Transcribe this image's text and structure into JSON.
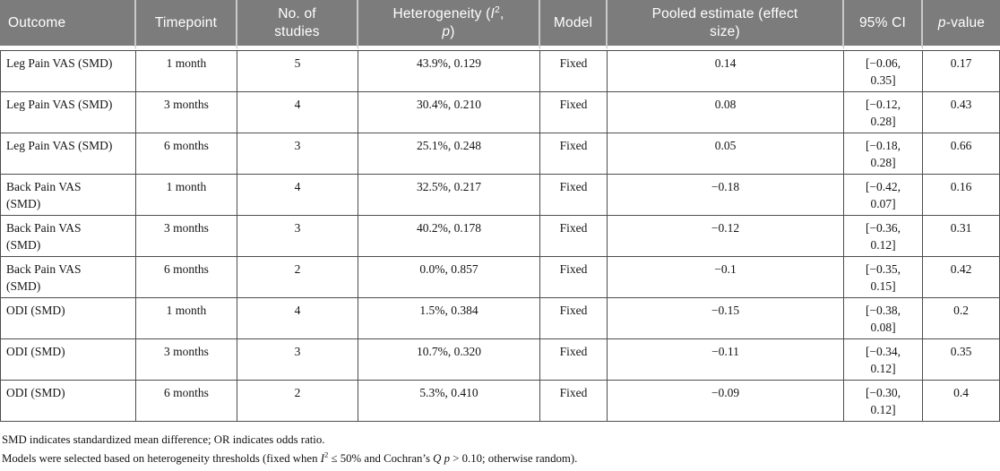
{
  "table": {
    "columns": [
      {
        "key": "outcome",
        "label": "Outcome"
      },
      {
        "key": "timepoint",
        "label": "Timepoint"
      },
      {
        "key": "n_studies",
        "label": "No. of\nstudies"
      },
      {
        "key": "heterogeneity",
        "label": "Heterogeneity (*I*^2^,\n*p*)"
      },
      {
        "key": "model",
        "label": "Model"
      },
      {
        "key": "pooled",
        "label": "Pooled estimate (effect\nsize)"
      },
      {
        "key": "ci",
        "label": "95% CI"
      },
      {
        "key": "p",
        "label": "*p*-value"
      }
    ],
    "rows": [
      {
        "outcome": "Leg Pain VAS (SMD)",
        "timepoint": "1 month",
        "n_studies": "5",
        "heterogeneity": "43.9%, 0.129",
        "model": "Fixed",
        "pooled": "0.14",
        "ci": "[−0.06,\n0.35]",
        "p": "0.17"
      },
      {
        "outcome": "Leg Pain VAS (SMD)",
        "timepoint": "3 months",
        "n_studies": "4",
        "heterogeneity": "30.4%, 0.210",
        "model": "Fixed",
        "pooled": "0.08",
        "ci": "[−0.12,\n0.28]",
        "p": "0.43"
      },
      {
        "outcome": "Leg Pain VAS (SMD)",
        "timepoint": "6 months",
        "n_studies": "3",
        "heterogeneity": "25.1%, 0.248",
        "model": "Fixed",
        "pooled": "0.05",
        "ci": "[−0.18,\n0.28]",
        "p": "0.66"
      },
      {
        "outcome": "Back Pain VAS\n(SMD)",
        "timepoint": "1 month",
        "n_studies": "4",
        "heterogeneity": "32.5%, 0.217",
        "model": "Fixed",
        "pooled": "−0.18",
        "ci": "[−0.42,\n0.07]",
        "p": "0.16"
      },
      {
        "outcome": "Back Pain VAS\n(SMD)",
        "timepoint": "3 months",
        "n_studies": "3",
        "heterogeneity": "40.2%, 0.178",
        "model": "Fixed",
        "pooled": "−0.12",
        "ci": "[−0.36,\n0.12]",
        "p": "0.31"
      },
      {
        "outcome": "Back Pain VAS\n(SMD)",
        "timepoint": "6 months",
        "n_studies": "2",
        "heterogeneity": "0.0%, 0.857",
        "model": "Fixed",
        "pooled": "−0.1",
        "ci": "[−0.35,\n0.15]",
        "p": "0.42"
      },
      {
        "outcome": "ODI (SMD)",
        "timepoint": "1 month",
        "n_studies": "4",
        "heterogeneity": "1.5%, 0.384",
        "model": "Fixed",
        "pooled": "−0.15",
        "ci": "[−0.38,\n0.08]",
        "p": "0.2"
      },
      {
        "outcome": "ODI (SMD)",
        "timepoint": "3 months",
        "n_studies": "3",
        "heterogeneity": "10.7%, 0.320",
        "model": "Fixed",
        "pooled": "−0.11",
        "ci": "[−0.34,\n0.12]",
        "p": "0.35"
      },
      {
        "outcome": "ODI (SMD)",
        "timepoint": "6 months",
        "n_studies": "2",
        "heterogeneity": "5.3%, 0.410",
        "model": "Fixed",
        "pooled": "−0.09",
        "ci": "[−0.30,\n0.12]",
        "p": "0.4"
      }
    ]
  },
  "footnotes": [
    "SMD indicates standardized mean difference; OR indicates odds ratio.",
    "Models were selected based on heterogeneity thresholds (fixed when *I*^2^ ≤ 50% and Cochran’s *Q* *p* > 0.10; otherwise random)."
  ],
  "colors": {
    "header_bg": "#7c7c7c",
    "header_text": "#ffffff",
    "grid_border": "#4d4d4d",
    "header_separator": "#c9c9c9"
  }
}
